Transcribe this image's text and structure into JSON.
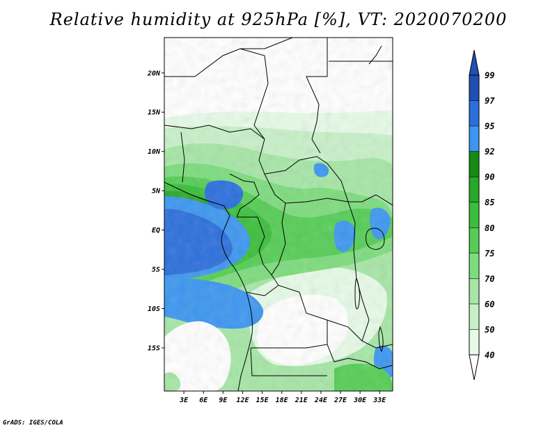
{
  "title": "Relative humidity at 925hPa [%], VT: 2020070200",
  "credit": "GrADS: IGES/COLA",
  "map": {
    "lat_labels": [
      "20N",
      "15N",
      "10N",
      "5N",
      "EQ",
      "5S",
      "10S",
      "15S"
    ],
    "lon_labels": [
      "3E",
      "6E",
      "9E",
      "12E",
      "15E",
      "18E",
      "21E",
      "24E",
      "27E",
      "30E",
      "33E"
    ],
    "lat_range": [
      -20.5,
      24.5
    ],
    "lon_range": [
      0,
      35
    ]
  },
  "colorbar": {
    "levels": [
      "40",
      "50",
      "60",
      "70",
      "75",
      "80",
      "85",
      "90",
      "92",
      "95",
      "97",
      "99"
    ],
    "colors": [
      "#ffffff",
      "#e6fae6",
      "#c8f0c8",
      "#a6e6a6",
      "#7ddc7d",
      "#55cd55",
      "#3cbe3c",
      "#28a828",
      "#148c14",
      "#3c96f0",
      "#2b6fdc",
      "#2050b4"
    ]
  }
}
